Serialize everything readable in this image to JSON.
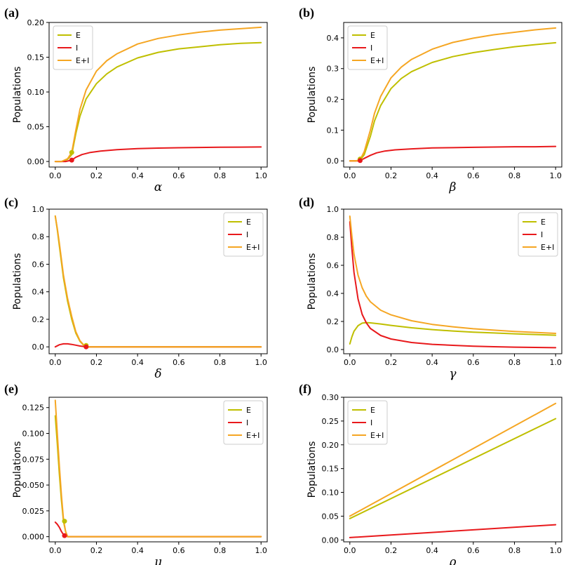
{
  "figure": {
    "ylabel": "Populations"
  },
  "colors": {
    "E": "#bfbf00",
    "I": "#e8191c",
    "EI": "#f5a623"
  },
  "legend_labels": [
    "E",
    "I",
    "E+I"
  ],
  "chart_data": [
    {
      "id": "a",
      "tag": "(a)",
      "type": "line",
      "xlabel": "α",
      "ylabel": "Populations",
      "xlim": [
        -0.03,
        1.03
      ],
      "ylim": [
        -0.008,
        0.2
      ],
      "xticks": [
        0.0,
        0.2,
        0.4,
        0.6,
        0.8,
        1.0
      ],
      "xtick_labels": [
        "0.0",
        "0.2",
        "0.4",
        "0.6",
        "0.8",
        "1.0"
      ],
      "yticks": [
        0.0,
        0.05,
        0.1,
        0.15,
        0.2
      ],
      "ytick_labels": [
        "0.00",
        "0.05",
        "0.10",
        "0.15",
        "0.20"
      ],
      "legend": "top-left",
      "series": [
        {
          "name": "E",
          "x": [
            0.0,
            0.03,
            0.06,
            0.08,
            0.1,
            0.12,
            0.15,
            0.2,
            0.25,
            0.3,
            0.4,
            0.5,
            0.6,
            0.7,
            0.8,
            0.9,
            1.0
          ],
          "y": [
            0.0,
            0.0,
            0.003,
            0.01,
            0.04,
            0.065,
            0.09,
            0.112,
            0.126,
            0.136,
            0.149,
            0.157,
            0.162,
            0.165,
            0.168,
            0.17,
            0.171
          ]
        },
        {
          "name": "I",
          "x": [
            0.0,
            0.05,
            0.08,
            0.1,
            0.13,
            0.17,
            0.22,
            0.3,
            0.4,
            0.5,
            0.6,
            0.7,
            0.8,
            0.9,
            1.0
          ],
          "y": [
            0.0,
            0.0,
            0.002,
            0.006,
            0.01,
            0.013,
            0.015,
            0.017,
            0.0185,
            0.0193,
            0.0198,
            0.0202,
            0.0205,
            0.0207,
            0.0209
          ]
        },
        {
          "name": "E+I",
          "x": [
            0.0,
            0.03,
            0.06,
            0.08,
            0.1,
            0.12,
            0.15,
            0.2,
            0.25,
            0.3,
            0.4,
            0.5,
            0.6,
            0.7,
            0.8,
            0.9,
            1.0
          ],
          "y": [
            0.0,
            0.0,
            0.004,
            0.013,
            0.045,
            0.075,
            0.103,
            0.13,
            0.145,
            0.155,
            0.169,
            0.177,
            0.182,
            0.186,
            0.189,
            0.191,
            0.193
          ]
        }
      ],
      "markers": [
        {
          "series": "E",
          "x": 0.08,
          "y": 0.013
        },
        {
          "series": "I",
          "x": 0.08,
          "y": 0.002
        }
      ]
    },
    {
      "id": "b",
      "tag": "(b)",
      "type": "line",
      "xlabel": "β",
      "ylabel": "Populations",
      "xlim": [
        -0.03,
        1.03
      ],
      "ylim": [
        -0.02,
        0.45
      ],
      "xticks": [
        0.0,
        0.2,
        0.4,
        0.6,
        0.8,
        1.0
      ],
      "xtick_labels": [
        "0.0",
        "0.2",
        "0.4",
        "0.6",
        "0.8",
        "1.0"
      ],
      "yticks": [
        0.0,
        0.1,
        0.2,
        0.3,
        0.4
      ],
      "ytick_labels": [
        "0.0",
        "0.1",
        "0.2",
        "0.3",
        "0.4"
      ],
      "legend": "top-left",
      "series": [
        {
          "name": "E",
          "x": [
            0.0,
            0.03,
            0.05,
            0.07,
            0.1,
            0.12,
            0.15,
            0.2,
            0.25,
            0.3,
            0.4,
            0.5,
            0.6,
            0.7,
            0.8,
            0.9,
            1.0
          ],
          "y": [
            0.0,
            0.0,
            0.003,
            0.02,
            0.08,
            0.13,
            0.18,
            0.235,
            0.268,
            0.29,
            0.32,
            0.339,
            0.352,
            0.362,
            0.371,
            0.378,
            0.384
          ]
        },
        {
          "name": "I",
          "x": [
            0.0,
            0.04,
            0.05,
            0.07,
            0.1,
            0.13,
            0.17,
            0.22,
            0.3,
            0.4,
            0.5,
            0.6,
            0.7,
            0.8,
            0.9,
            1.0
          ],
          "y": [
            0.0,
            0.0,
            0.001,
            0.008,
            0.018,
            0.026,
            0.032,
            0.036,
            0.039,
            0.042,
            0.043,
            0.044,
            0.045,
            0.046,
            0.046,
            0.047
          ]
        },
        {
          "name": "E+I",
          "x": [
            0.0,
            0.03,
            0.05,
            0.07,
            0.1,
            0.12,
            0.15,
            0.2,
            0.25,
            0.3,
            0.4,
            0.5,
            0.6,
            0.7,
            0.8,
            0.9,
            1.0
          ],
          "y": [
            0.0,
            0.0,
            0.004,
            0.03,
            0.1,
            0.155,
            0.21,
            0.27,
            0.305,
            0.33,
            0.363,
            0.385,
            0.399,
            0.41,
            0.418,
            0.426,
            0.432
          ]
        }
      ],
      "markers": [
        {
          "series": "E",
          "x": 0.05,
          "y": 0.006
        },
        {
          "series": "I",
          "x": 0.05,
          "y": 0.001
        }
      ]
    },
    {
      "id": "c",
      "tag": "(c)",
      "type": "line",
      "xlabel": "δ",
      "ylabel": "Populations",
      "xlim": [
        -0.03,
        1.03
      ],
      "ylim": [
        -0.05,
        1.0
      ],
      "xticks": [
        0.0,
        0.2,
        0.4,
        0.6,
        0.8,
        1.0
      ],
      "xtick_labels": [
        "0.0",
        "0.2",
        "0.4",
        "0.6",
        "0.8",
        "1.0"
      ],
      "yticks": [
        0.0,
        0.2,
        0.4,
        0.6,
        0.8,
        1.0
      ],
      "ytick_labels": [
        "0.0",
        "0.2",
        "0.4",
        "0.6",
        "0.8",
        "1.0"
      ],
      "legend": "top-right",
      "series": [
        {
          "name": "E",
          "x": [
            0.0,
            0.01,
            0.02,
            0.04,
            0.06,
            0.08,
            0.1,
            0.12,
            0.14,
            0.15,
            0.2,
            0.4,
            0.6,
            0.8,
            1.0
          ],
          "y": [
            0.95,
            0.85,
            0.73,
            0.5,
            0.33,
            0.2,
            0.1,
            0.04,
            0.008,
            0.0,
            0.0,
            0.0,
            0.0,
            0.0,
            0.0
          ]
        },
        {
          "name": "I",
          "x": [
            0.0,
            0.02,
            0.04,
            0.06,
            0.08,
            0.1,
            0.12,
            0.14,
            0.15,
            0.2,
            0.4,
            0.6,
            0.8,
            1.0
          ],
          "y": [
            0.0,
            0.015,
            0.022,
            0.022,
            0.018,
            0.012,
            0.006,
            0.002,
            0.0,
            0.0,
            0.0,
            0.0,
            0.0,
            0.0
          ]
        },
        {
          "name": "E+I",
          "x": [
            0.0,
            0.01,
            0.02,
            0.04,
            0.06,
            0.08,
            0.1,
            0.12,
            0.14,
            0.15,
            0.2,
            0.4,
            0.6,
            0.8,
            1.0
          ],
          "y": [
            0.95,
            0.86,
            0.75,
            0.52,
            0.35,
            0.22,
            0.11,
            0.045,
            0.01,
            0.0,
            0.0,
            0.0,
            0.0,
            0.0,
            0.0
          ]
        }
      ],
      "markers": [
        {
          "series": "E",
          "x": 0.15,
          "y": 0.01
        },
        {
          "series": "I",
          "x": 0.15,
          "y": 0.0
        }
      ]
    },
    {
      "id": "d",
      "tag": "(d)",
      "type": "line",
      "xlabel": "γ",
      "ylabel": "Populations",
      "xlim": [
        -0.03,
        1.03
      ],
      "ylim": [
        -0.03,
        1.0
      ],
      "xticks": [
        0.0,
        0.2,
        0.4,
        0.6,
        0.8,
        1.0
      ],
      "xtick_labels": [
        "0.0",
        "0.2",
        "0.4",
        "0.6",
        "0.8",
        "1.0"
      ],
      "yticks": [
        0.0,
        0.2,
        0.4,
        0.6,
        0.8,
        1.0
      ],
      "ytick_labels": [
        "0.0",
        "0.2",
        "0.4",
        "0.6",
        "0.8",
        "1.0"
      ],
      "legend": "top-right",
      "series": [
        {
          "name": "E",
          "x": [
            0.0,
            0.01,
            0.02,
            0.04,
            0.06,
            0.08,
            0.1,
            0.15,
            0.2,
            0.3,
            0.4,
            0.5,
            0.6,
            0.7,
            0.8,
            0.9,
            1.0
          ],
          "y": [
            0.04,
            0.09,
            0.13,
            0.17,
            0.188,
            0.192,
            0.19,
            0.182,
            0.172,
            0.155,
            0.142,
            0.132,
            0.124,
            0.118,
            0.112,
            0.107,
            0.102
          ]
        },
        {
          "name": "I",
          "x": [
            0.0,
            0.01,
            0.02,
            0.04,
            0.06,
            0.08,
            0.1,
            0.15,
            0.2,
            0.3,
            0.4,
            0.5,
            0.6,
            0.7,
            0.8,
            0.9,
            1.0
          ],
          "y": [
            0.91,
            0.72,
            0.55,
            0.36,
            0.25,
            0.19,
            0.15,
            0.1,
            0.075,
            0.05,
            0.037,
            0.03,
            0.024,
            0.02,
            0.017,
            0.015,
            0.013
          ]
        },
        {
          "name": "E+I",
          "x": [
            0.0,
            0.01,
            0.02,
            0.04,
            0.06,
            0.08,
            0.1,
            0.15,
            0.2,
            0.3,
            0.4,
            0.5,
            0.6,
            0.7,
            0.8,
            0.9,
            1.0
          ],
          "y": [
            0.95,
            0.81,
            0.68,
            0.53,
            0.44,
            0.38,
            0.34,
            0.28,
            0.247,
            0.205,
            0.179,
            0.162,
            0.148,
            0.138,
            0.129,
            0.122,
            0.115
          ]
        }
      ],
      "markers": []
    },
    {
      "id": "e",
      "tag": "(e)",
      "type": "line",
      "xlabel": "μ",
      "ylabel": "Populations",
      "xlim": [
        -0.03,
        1.03
      ],
      "ylim": [
        -0.005,
        0.135
      ],
      "xticks": [
        0.0,
        0.2,
        0.4,
        0.6,
        0.8,
        1.0
      ],
      "xtick_labels": [
        "0.0",
        "0.2",
        "0.4",
        "0.6",
        "0.8",
        "1.0"
      ],
      "yticks": [
        0.0,
        0.025,
        0.05,
        0.075,
        0.1,
        0.125
      ],
      "ytick_labels": [
        "0.000",
        "0.025",
        "0.050",
        "0.075",
        "0.100",
        "0.125"
      ],
      "legend": "top-right",
      "series": [
        {
          "name": "E",
          "x": [
            0.0,
            0.01,
            0.02,
            0.03,
            0.04,
            0.05,
            0.06,
            0.08,
            0.2,
            0.4,
            0.6,
            0.8,
            1.0
          ],
          "y": [
            0.117,
            0.09,
            0.06,
            0.035,
            0.015,
            0.005,
            0.0,
            0.0,
            0.0,
            0.0,
            0.0,
            0.0,
            0.0
          ]
        },
        {
          "name": "I",
          "x": [
            0.0,
            0.01,
            0.02,
            0.03,
            0.04,
            0.05,
            0.06,
            0.08,
            0.2,
            0.4,
            0.6,
            0.8,
            1.0
          ],
          "y": [
            0.014,
            0.012,
            0.009,
            0.005,
            0.002,
            0.001,
            0.0,
            0.0,
            0.0,
            0.0,
            0.0,
            0.0,
            0.0
          ]
        },
        {
          "name": "E+I",
          "x": [
            0.0,
            0.01,
            0.02,
            0.03,
            0.04,
            0.05,
            0.06,
            0.08,
            0.2,
            0.4,
            0.6,
            0.8,
            1.0
          ],
          "y": [
            0.132,
            0.1,
            0.068,
            0.04,
            0.017,
            0.005,
            0.0,
            0.0,
            0.0,
            0.0,
            0.0,
            0.0,
            0.0
          ]
        }
      ],
      "markers": [
        {
          "series": "E",
          "x": 0.045,
          "y": 0.015
        },
        {
          "series": "I",
          "x": 0.045,
          "y": 0.001
        }
      ]
    },
    {
      "id": "f",
      "tag": "(f)",
      "type": "line",
      "xlabel": "ρ",
      "ylabel": "Populations",
      "xlim": [
        -0.03,
        1.03
      ],
      "ylim": [
        -0.004,
        0.3
      ],
      "xticks": [
        0.0,
        0.2,
        0.4,
        0.6,
        0.8,
        1.0
      ],
      "xtick_labels": [
        "0.0",
        "0.2",
        "0.4",
        "0.6",
        "0.8",
        "1.0"
      ],
      "yticks": [
        0.0,
        0.05,
        0.1,
        0.15,
        0.2,
        0.25,
        0.3
      ],
      "ytick_labels": [
        "0.00",
        "0.05",
        "0.10",
        "0.15",
        "0.20",
        "0.25",
        "0.30"
      ],
      "legend": "top-left",
      "series": [
        {
          "name": "E",
          "x": [
            0.0,
            1.0
          ],
          "y": [
            0.045,
            0.255
          ]
        },
        {
          "name": "I",
          "x": [
            0.0,
            1.0
          ],
          "y": [
            0.005,
            0.032
          ]
        },
        {
          "name": "E+I",
          "x": [
            0.0,
            1.0
          ],
          "y": [
            0.05,
            0.287
          ]
        }
      ],
      "markers": []
    }
  ]
}
